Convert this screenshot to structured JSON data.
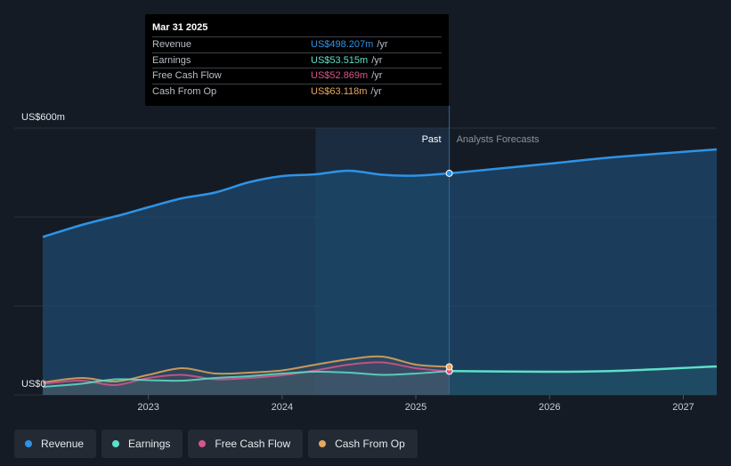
{
  "chart_data": {
    "type": "area",
    "y_axis": {
      "unit_prefix": "US$",
      "top_label": "US$600m",
      "bottom_label": "US$0",
      "ylim": [
        0,
        600
      ]
    },
    "x_axis": {
      "ticks": [
        "2023",
        "2024",
        "2025",
        "2026",
        "2027"
      ],
      "range": [
        2022.21,
        2027.25
      ]
    },
    "divider_date": 2025.25,
    "past_label": "Past",
    "forecast_label": "Analysts Forecasts",
    "series": [
      {
        "name": "Revenue",
        "color": "#2e93e6",
        "points": [
          [
            2022.21,
            355
          ],
          [
            2022.5,
            382
          ],
          [
            2022.8,
            405
          ],
          [
            2023.0,
            422
          ],
          [
            2023.25,
            442
          ],
          [
            2023.5,
            455
          ],
          [
            2023.75,
            478
          ],
          [
            2024.0,
            492
          ],
          [
            2024.25,
            496
          ],
          [
            2024.5,
            504
          ],
          [
            2024.75,
            495
          ],
          [
            2025.0,
            493
          ],
          [
            2025.25,
            498.2
          ],
          [
            2026.0,
            520
          ],
          [
            2026.5,
            535
          ],
          [
            2027.25,
            552
          ]
        ]
      },
      {
        "name": "Earnings",
        "color": "#5ee0c8",
        "points": [
          [
            2022.21,
            18
          ],
          [
            2022.5,
            25
          ],
          [
            2022.75,
            35
          ],
          [
            2023.0,
            33
          ],
          [
            2023.25,
            32
          ],
          [
            2023.5,
            38
          ],
          [
            2023.75,
            42
          ],
          [
            2024.0,
            48
          ],
          [
            2024.25,
            52
          ],
          [
            2024.5,
            50
          ],
          [
            2024.75,
            45
          ],
          [
            2025.0,
            48
          ],
          [
            2025.25,
            53.5
          ],
          [
            2026.0,
            52
          ],
          [
            2026.5,
            54
          ],
          [
            2027.25,
            64
          ]
        ]
      },
      {
        "name": "Free Cash Flow",
        "color": "#d9558c",
        "points": [
          [
            2022.21,
            25
          ],
          [
            2022.5,
            32
          ],
          [
            2022.75,
            22
          ],
          [
            2023.0,
            38
          ],
          [
            2023.25,
            45
          ],
          [
            2023.5,
            35
          ],
          [
            2023.75,
            38
          ],
          [
            2024.0,
            44
          ],
          [
            2024.25,
            55
          ],
          [
            2024.5,
            68
          ],
          [
            2024.75,
            73
          ],
          [
            2025.0,
            60
          ],
          [
            2025.25,
            52.9
          ]
        ]
      },
      {
        "name": "Cash From Op",
        "color": "#e8a75a",
        "points": [
          [
            2022.21,
            28
          ],
          [
            2022.5,
            38
          ],
          [
            2022.75,
            30
          ],
          [
            2023.0,
            45
          ],
          [
            2023.25,
            60
          ],
          [
            2023.5,
            48
          ],
          [
            2023.75,
            50
          ],
          [
            2024.0,
            55
          ],
          [
            2024.25,
            68
          ],
          [
            2024.5,
            80
          ],
          [
            2024.75,
            86
          ],
          [
            2025.0,
            68
          ],
          [
            2025.25,
            63.1
          ]
        ]
      }
    ]
  },
  "tooltip": {
    "date": "Mar 31 2025",
    "rows": [
      {
        "name": "Revenue",
        "value": "US$498.207m",
        "unit": "/yr",
        "color": "#2e93e6"
      },
      {
        "name": "Earnings",
        "value": "US$53.515m",
        "unit": "/yr",
        "color": "#5ee0c8"
      },
      {
        "name": "Free Cash Flow",
        "value": "US$52.869m",
        "unit": "/yr",
        "color": "#d9558c"
      },
      {
        "name": "Cash From Op",
        "value": "US$63.118m",
        "unit": "/yr",
        "color": "#e8a75a"
      }
    ]
  },
  "legend": [
    {
      "label": "Revenue",
      "color": "#2e93e6"
    },
    {
      "label": "Earnings",
      "color": "#5ee0c8"
    },
    {
      "label": "Free Cash Flow",
      "color": "#d9558c"
    },
    {
      "label": "Cash From Op",
      "color": "#e8a75a"
    }
  ]
}
